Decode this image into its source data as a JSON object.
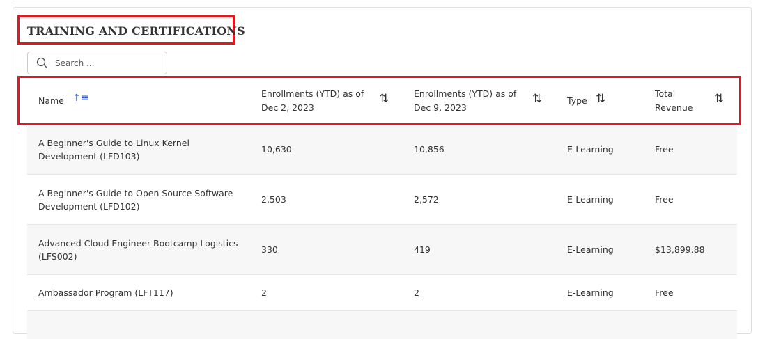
{
  "title": "TRAINING AND CERTIFICATIONS",
  "search": {
    "placeholder": "Search ...",
    "value": ""
  },
  "columns": [
    {
      "label": "Name",
      "sort": "ascending"
    },
    {
      "label": "Enrollments (YTD) as of Dec 2, 2023",
      "sort": "none"
    },
    {
      "label": "Enrollments (YTD) as of Dec 9, 2023",
      "sort": "none"
    },
    {
      "label": "Type",
      "sort": "none"
    },
    {
      "label": "Total Revenue",
      "sort": "none"
    }
  ],
  "rows": [
    {
      "name": "A Beginner's Guide to Linux Kernel Development (LFD103)",
      "dec2": "10,630",
      "dec9": "10,856",
      "type": "E-Learning",
      "revenue": "Free"
    },
    {
      "name": "A Beginner's Guide to Open Source Software Development (LFD102)",
      "dec2": "2,503",
      "dec9": "2,572",
      "type": "E-Learning",
      "revenue": "Free"
    },
    {
      "name": "Advanced Cloud Engineer Bootcamp Logistics (LFS002)",
      "dec2": "330",
      "dec9": "419",
      "type": "E-Learning",
      "revenue": "$13,899.88"
    },
    {
      "name": "Ambassador Program (LFT117)",
      "dec2": "2",
      "dec9": "2",
      "type": "E-Learning",
      "revenue": "Free"
    }
  ],
  "colors": {
    "highlight": "#e8141e",
    "sort_active": "#2b5cd6",
    "row_alt": "#f7f7f7"
  }
}
